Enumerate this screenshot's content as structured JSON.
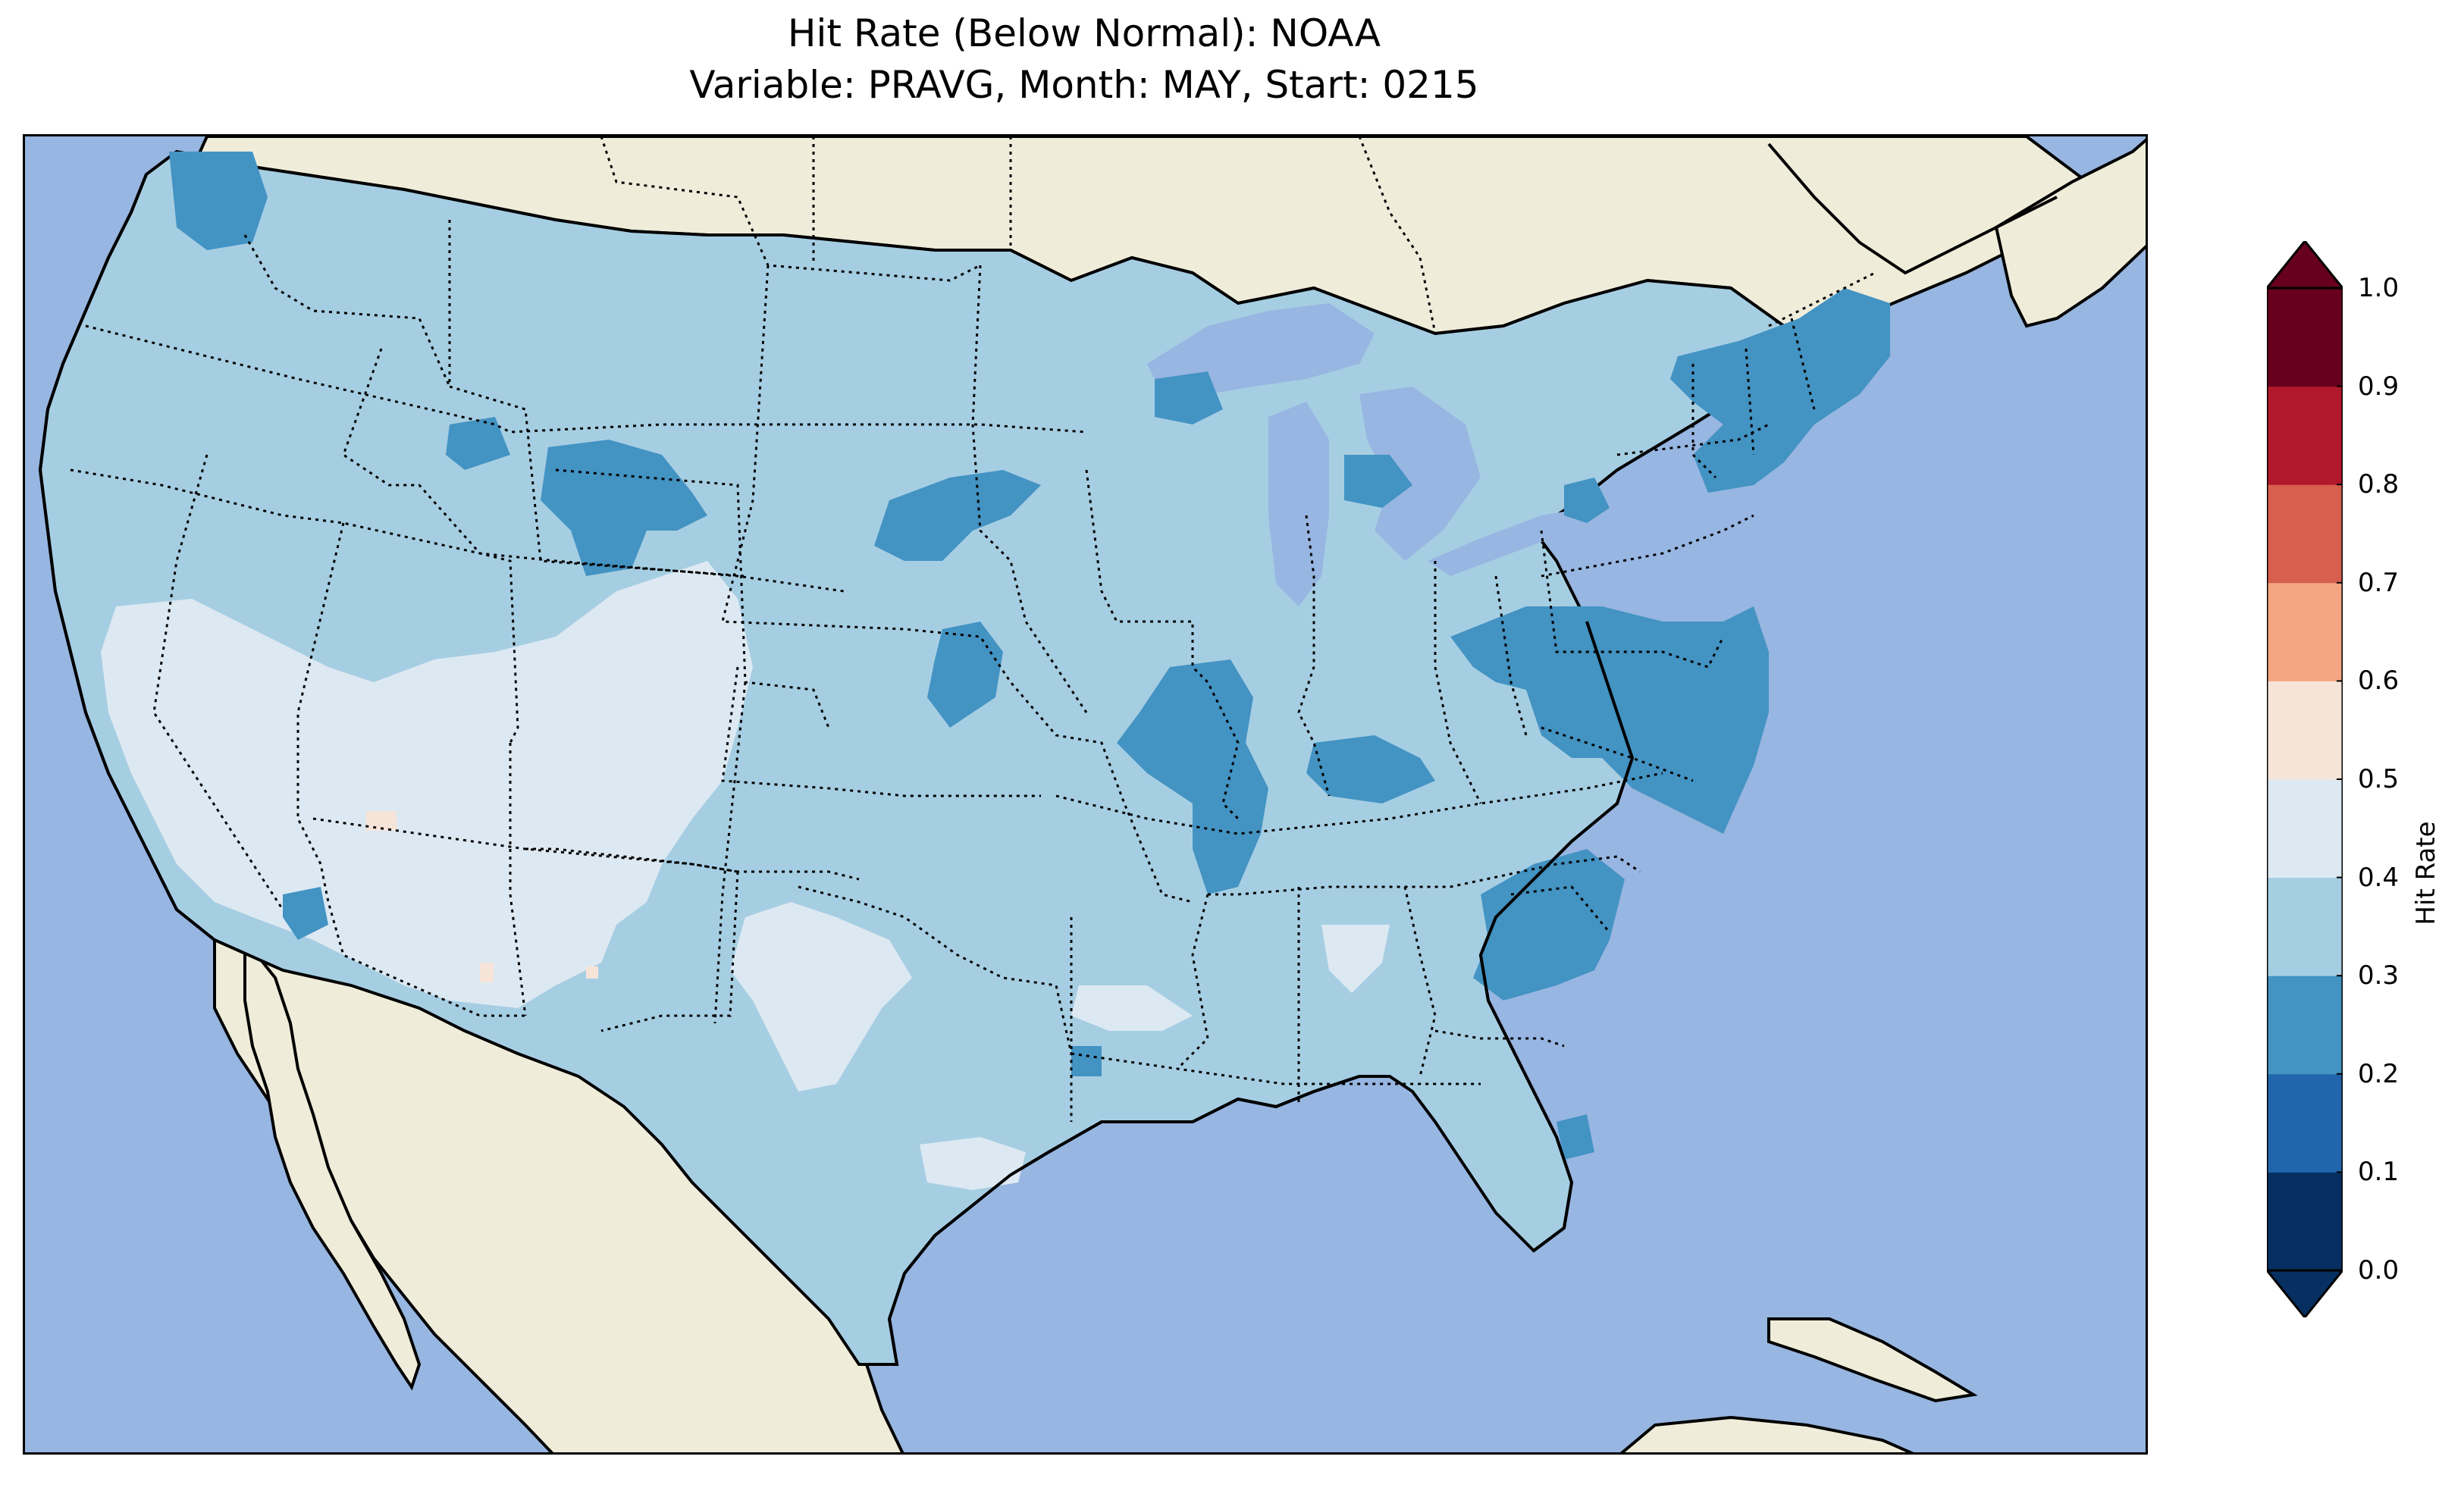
{
  "title_line1": "Hit Rate (Below Normal): NOAA",
  "title_line2": "Variable: PRAVG, Month: MAY, Start: 0215",
  "colors": {
    "ocean": "#97b6e1",
    "land": "#efedda",
    "border": "#000000"
  },
  "colorbar": {
    "label": "Hit Rate",
    "extend": "both",
    "ticks": [
      "0.0",
      "0.1",
      "0.2",
      "0.3",
      "0.4",
      "0.5",
      "0.6",
      "0.7",
      "0.8",
      "0.9",
      "1.0"
    ],
    "bins": [
      {
        "from": 0.0,
        "to": 0.1,
        "color": "#053061"
      },
      {
        "from": 0.1,
        "to": 0.2,
        "color": "#2166ac"
      },
      {
        "from": 0.2,
        "to": 0.3,
        "color": "#4393c3"
      },
      {
        "from": 0.3,
        "to": 0.4,
        "color": "#a6cee3"
      },
      {
        "from": 0.4,
        "to": 0.5,
        "color": "#dde9f2"
      },
      {
        "from": 0.5,
        "to": 0.6,
        "color": "#f7e4d9"
      },
      {
        "from": 0.6,
        "to": 0.7,
        "color": "#f4a582"
      },
      {
        "from": 0.7,
        "to": 0.8,
        "color": "#d6604d"
      },
      {
        "from": 0.8,
        "to": 0.9,
        "color": "#b2182b"
      },
      {
        "from": 0.9,
        "to": 1.0,
        "color": "#67001f"
      }
    ]
  },
  "map_legend_note": ""
}
